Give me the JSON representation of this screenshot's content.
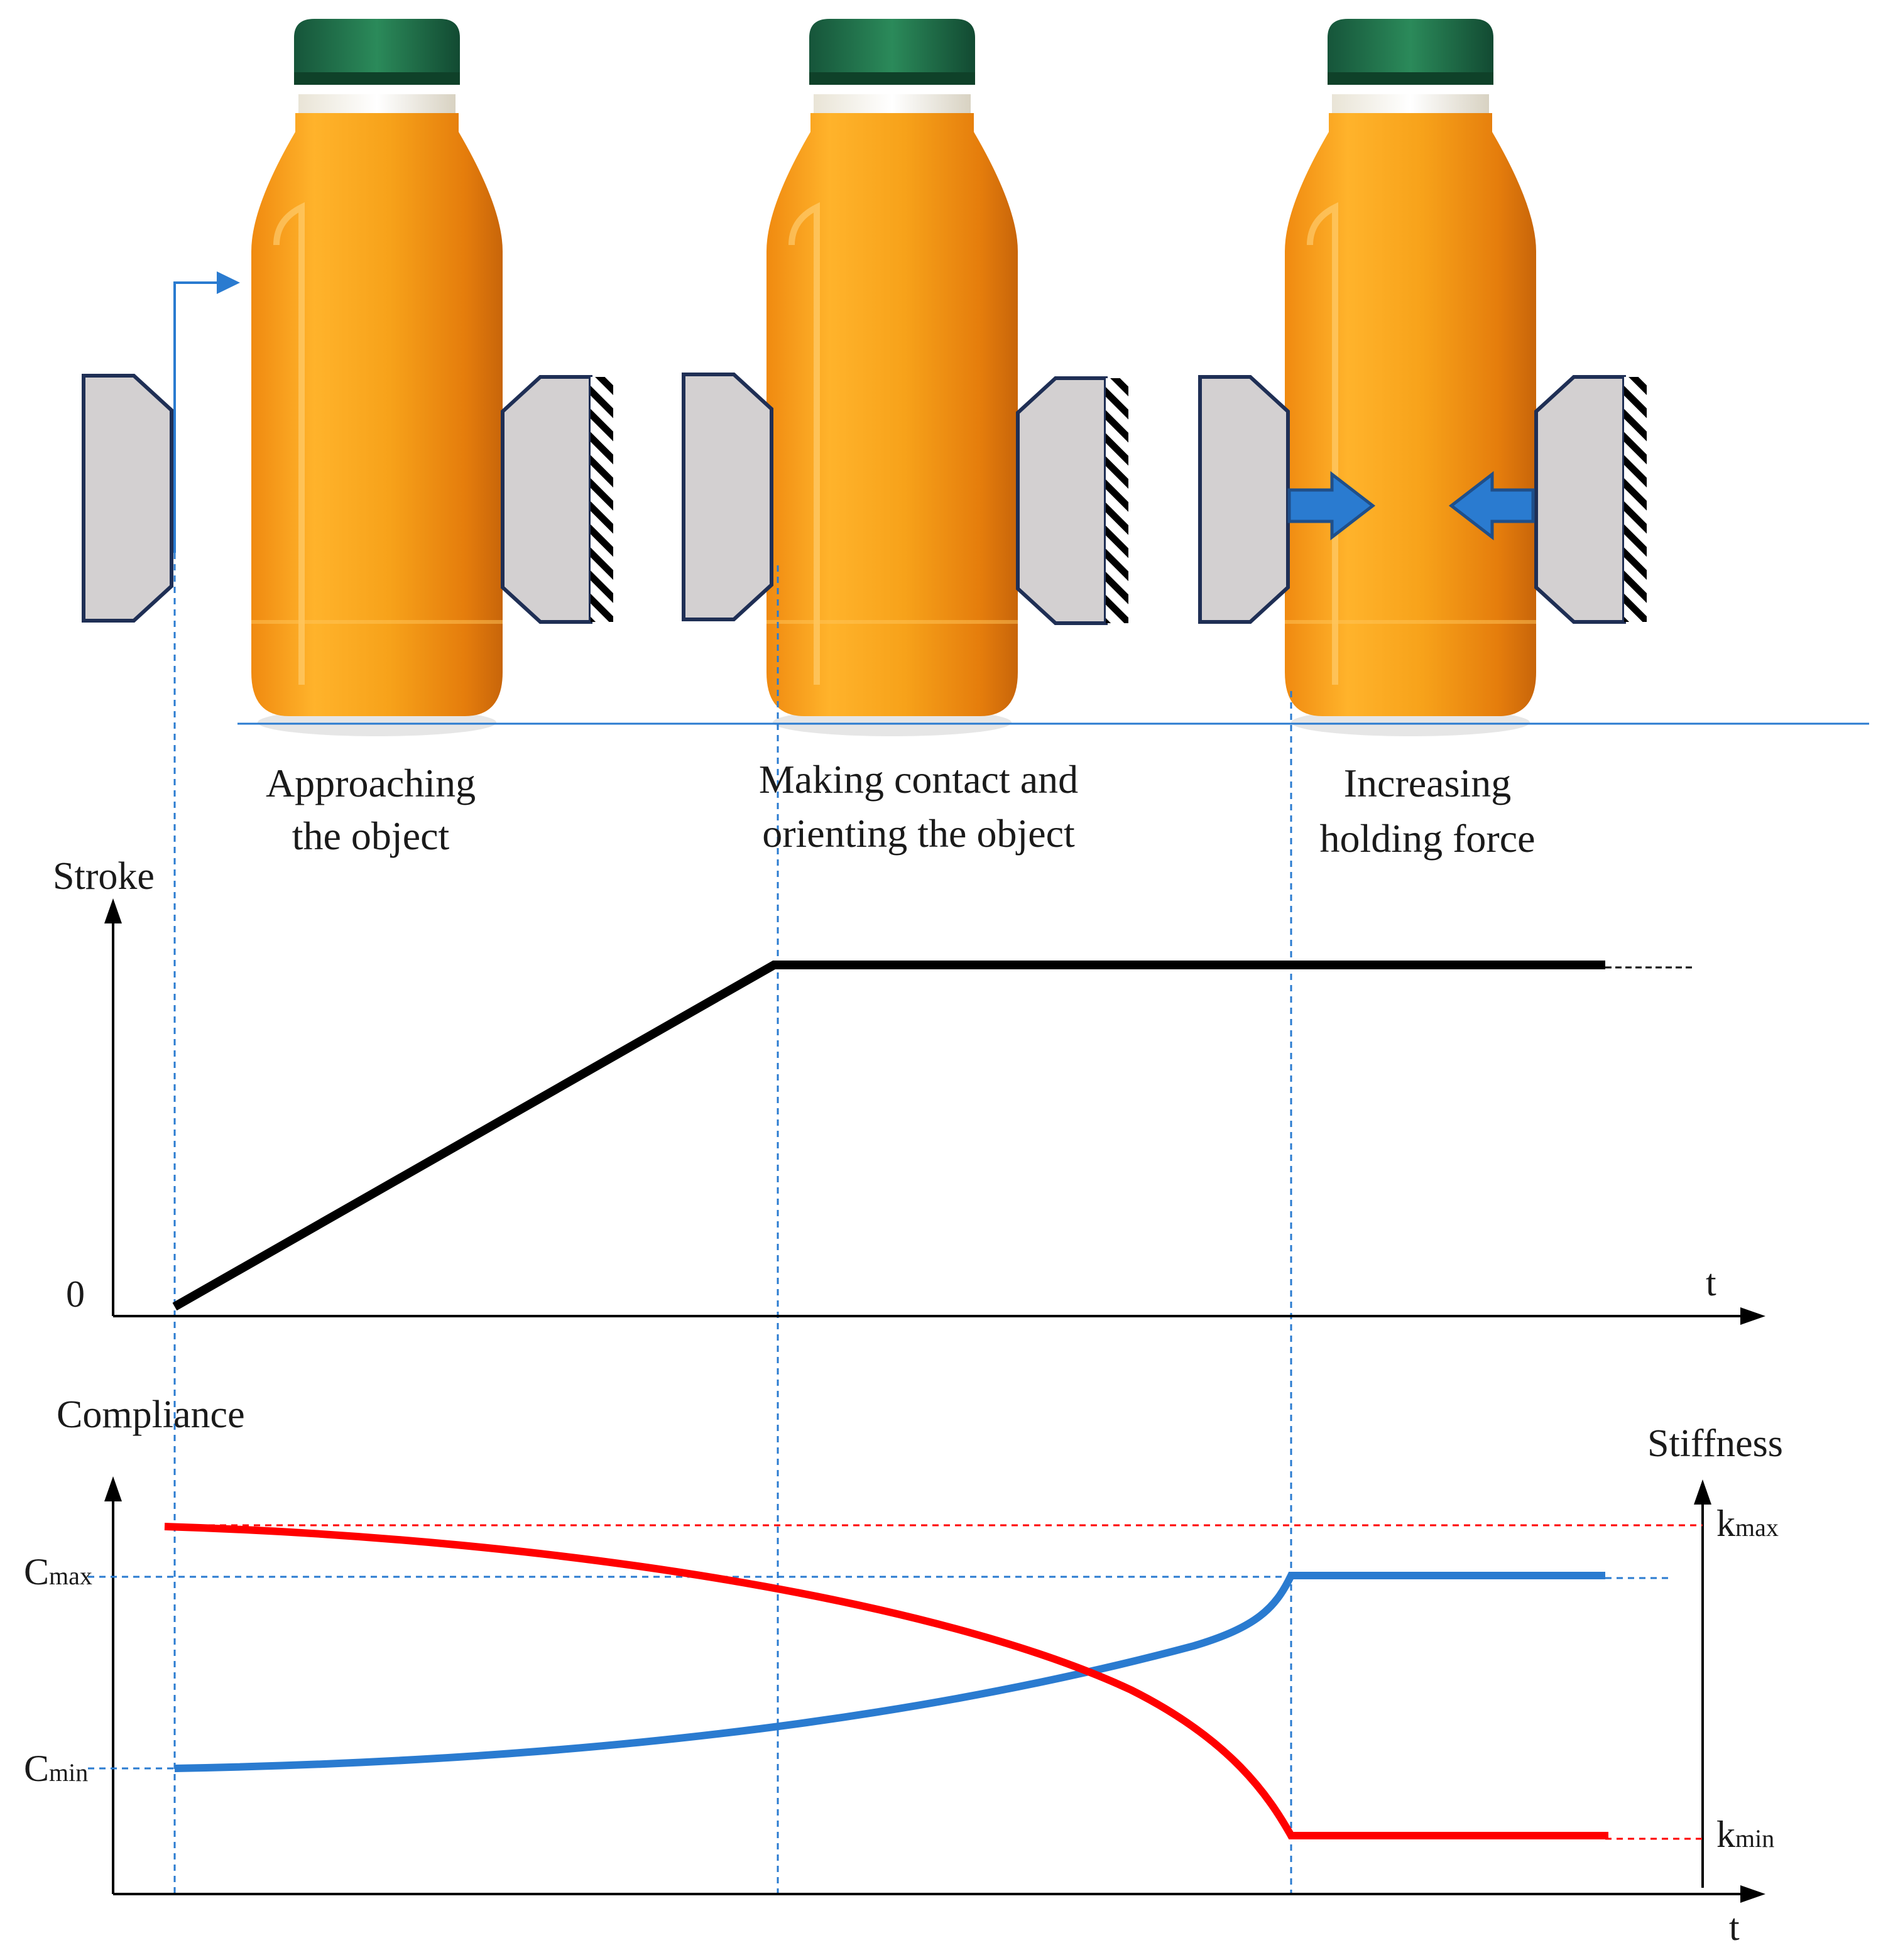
{
  "phases": [
    {
      "line1": "Approaching",
      "line2": "the object"
    },
    {
      "line1": "Making contact and",
      "line2": "orienting the object"
    },
    {
      "line1": "Increasing",
      "line2": "holding force"
    }
  ],
  "stroke_chart": {
    "ylabel": "Stroke",
    "origin_label": "0",
    "xlabel": "t"
  },
  "compliance_chart": {
    "left_axis_label": "Compliance",
    "right_axis_label": "Stiffness",
    "xlabel": "t",
    "c_max": {
      "main": "C",
      "sub": "max"
    },
    "c_min": {
      "main": "C",
      "sub": "min"
    },
    "k_max": {
      "main": "k",
      "sub": "max"
    },
    "k_min": {
      "main": "k",
      "sub": "min"
    }
  },
  "colors": {
    "bottle_body": "#f7a21a",
    "bottle_cap": "#1f6b45",
    "gripper_fill": "#d3d0d1",
    "gripper_stroke": "#1f2f55",
    "force_arrow": "#2a7bd0",
    "guide_blue": "#2a7bd0",
    "stroke_line": "#000000",
    "compliance_curve": "#ff0000",
    "stiffness_curve": "#2a7bd0"
  },
  "icons": [
    "bottle-icon",
    "gripper-jaw-icon",
    "force-arrow-icon",
    "approach-arrow-icon"
  ]
}
